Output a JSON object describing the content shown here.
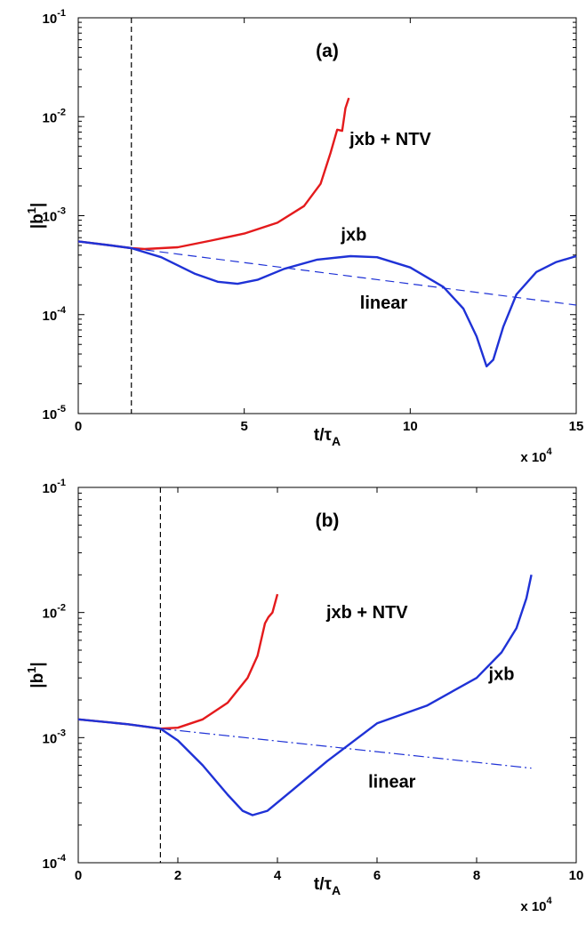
{
  "chart_data": [
    {
      "type": "line",
      "panel_label": "(a)",
      "xlabel": "t/τ",
      "xlabel_sub": "A",
      "ylabel": "|b",
      "ylabel_sup": "1",
      "ylabel_end": "|",
      "x_multiplier": "x 10",
      "x_multiplier_exp": "4",
      "xlim": [
        0,
        15
      ],
      "ylim_exp": [
        -5,
        -1
      ],
      "yscale": "log",
      "xticks": [
        "0",
        "5",
        "10",
        "15"
      ],
      "yticks": [
        {
          "base": "10",
          "exp": "-5"
        },
        {
          "base": "10",
          "exp": "-4"
        },
        {
          "base": "10",
          "exp": "-3"
        },
        {
          "base": "10",
          "exp": "-2"
        },
        {
          "base": "10",
          "exp": "-1"
        }
      ],
      "vline_x": 1.6,
      "series": [
        {
          "name": "jxb + NTV",
          "color": "#e41a1c",
          "style": "solid",
          "points": [
            [
              0,
              0.00055
            ],
            [
              1,
              0.0005
            ],
            [
              1.6,
              0.00047
            ],
            [
              2,
              0.00046
            ],
            [
              3,
              0.00048
            ],
            [
              4,
              0.00056
            ],
            [
              5,
              0.00066
            ],
            [
              6,
              0.00085
            ],
            [
              6.8,
              0.00125
            ],
            [
              7.3,
              0.0021
            ],
            [
              7.6,
              0.0043
            ],
            [
              7.8,
              0.0074
            ],
            [
              7.95,
              0.0072
            ],
            [
              8.05,
              0.0122
            ],
            [
              8.15,
              0.0155
            ]
          ]
        },
        {
          "name": "jxb",
          "color": "#1f32d6",
          "style": "solid",
          "points": [
            [
              0,
              0.00055
            ],
            [
              1,
              0.0005
            ],
            [
              1.6,
              0.00047
            ],
            [
              2.5,
              0.00038
            ],
            [
              3.5,
              0.00026
            ],
            [
              4.2,
              0.000215
            ],
            [
              4.8,
              0.000205
            ],
            [
              5.4,
              0.000225
            ],
            [
              6.2,
              0.00029
            ],
            [
              7.2,
              0.00036
            ],
            [
              8.2,
              0.00039
            ],
            [
              9,
              0.00038
            ],
            [
              10,
              0.0003
            ],
            [
              11,
              0.00019
            ],
            [
              11.6,
              0.000115
            ],
            [
              12,
              6e-05
            ],
            [
              12.3,
              3e-05
            ],
            [
              12.5,
              3.5e-05
            ],
            [
              12.8,
              7.5e-05
            ],
            [
              13.2,
              0.00016
            ],
            [
              13.8,
              0.00027
            ],
            [
              14.4,
              0.00034
            ],
            [
              15,
              0.00039
            ]
          ]
        },
        {
          "name": "linear",
          "color": "#1f32d6",
          "style": "dashed",
          "points": [
            [
              1.6,
              0.00047
            ],
            [
              15,
              0.000125
            ]
          ]
        }
      ],
      "annotations": [
        {
          "text": "jxb + NTV",
          "x": 9.4,
          "y": 0.0052
        },
        {
          "text": "jxb",
          "x": 8.3,
          "y": 0.00056
        },
        {
          "text": "linear",
          "x": 9.2,
          "y": 0.000115
        }
      ]
    },
    {
      "type": "line",
      "panel_label": "(b)",
      "xlabel": "t/τ",
      "xlabel_sub": "A",
      "ylabel": "|b",
      "ylabel_sup": "1",
      "ylabel_end": "|",
      "x_multiplier": "x 10",
      "x_multiplier_exp": "4",
      "xlim": [
        0,
        10
      ],
      "ylim_exp": [
        -4,
        -1
      ],
      "yscale": "log",
      "xticks": [
        "0",
        "2",
        "4",
        "6",
        "8",
        "10"
      ],
      "yticks": [
        {
          "base": "10",
          "exp": "-4"
        },
        {
          "base": "10",
          "exp": "-3"
        },
        {
          "base": "10",
          "exp": "-2"
        },
        {
          "base": "10",
          "exp": "-1"
        }
      ],
      "vline_x": 1.65,
      "series": [
        {
          "name": "jxb + NTV",
          "color": "#e41a1c",
          "style": "solid",
          "points": [
            [
              0,
              0.0014
            ],
            [
              1,
              0.00128
            ],
            [
              1.65,
              0.00118
            ],
            [
              2,
              0.0012
            ],
            [
              2.5,
              0.0014
            ],
            [
              3,
              0.0019
            ],
            [
              3.4,
              0.003
            ],
            [
              3.6,
              0.0045
            ],
            [
              3.75,
              0.0082
            ],
            [
              3.82,
              0.0092
            ],
            [
              3.9,
              0.01
            ],
            [
              4.0,
              0.014
            ]
          ]
        },
        {
          "name": "jxb",
          "color": "#1f32d6",
          "style": "solid",
          "points": [
            [
              0,
              0.0014
            ],
            [
              1,
              0.00128
            ],
            [
              1.65,
              0.00118
            ],
            [
              2,
              0.00095
            ],
            [
              2.5,
              0.0006
            ],
            [
              3,
              0.00035
            ],
            [
              3.3,
              0.00026
            ],
            [
              3.5,
              0.00024
            ],
            [
              3.8,
              0.00026
            ],
            [
              4.3,
              0.00038
            ],
            [
              5,
              0.00065
            ],
            [
              6,
              0.0013
            ],
            [
              7,
              0.0018
            ],
            [
              8,
              0.003
            ],
            [
              8.5,
              0.0048
            ],
            [
              8.8,
              0.0075
            ],
            [
              9.0,
              0.013
            ],
            [
              9.1,
              0.02
            ]
          ]
        },
        {
          "name": "linear",
          "color": "#1f32d6",
          "style": "dashdot",
          "points": [
            [
              1.65,
              0.00118
            ],
            [
              9.1,
              0.00057
            ]
          ]
        }
      ],
      "annotations": [
        {
          "text": "jxb + NTV",
          "x": 5.8,
          "y": 0.009
        },
        {
          "text": "jxb",
          "x": 8.5,
          "y": 0.0029
        },
        {
          "text": "linear",
          "x": 6.3,
          "y": 0.0004
        }
      ]
    }
  ]
}
